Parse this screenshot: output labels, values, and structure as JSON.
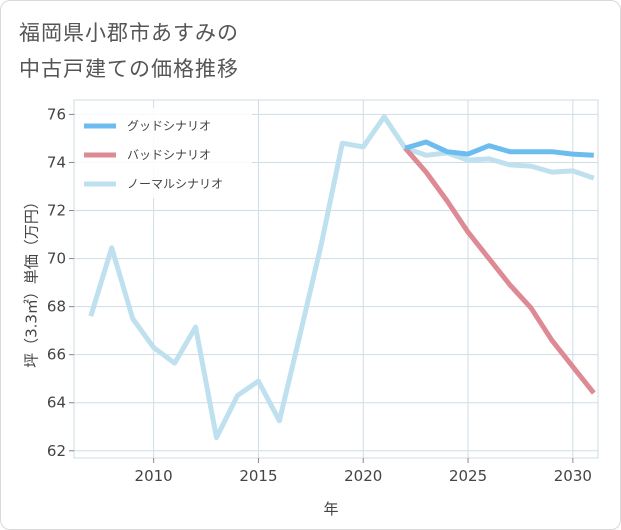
{
  "title": {
    "line1": "福岡県小郡市あすみの",
    "line2": "中古戸建ての価格推移"
  },
  "colors": {
    "good": "#6cbcf0",
    "bad": "#de8a94",
    "normal": "#bfe0ee",
    "grid": "#cfdde6",
    "axis_text": "#444444"
  },
  "chart_data": {
    "type": "line",
    "xlabel": "年",
    "ylabel": "坪（3.3㎡）単価（万円）",
    "xlim": [
      2006.2,
      2031.2
    ],
    "ylim": [
      61.7,
      76.6
    ],
    "xticks": [
      2010,
      2015,
      2020,
      2025,
      2030
    ],
    "yticks": [
      62,
      64,
      66,
      68,
      70,
      72,
      74,
      76
    ],
    "grid": true,
    "legend_position": "top-left",
    "series": [
      {
        "name": "グッドシナリオ",
        "color": "#6cbcf0",
        "x": [
          2022,
          2023,
          2024,
          2025,
          2026,
          2027,
          2028,
          2029,
          2030,
          2031
        ],
        "y": [
          74.6,
          74.85,
          74.45,
          74.35,
          74.7,
          74.45,
          74.45,
          74.45,
          74.35,
          74.3
        ]
      },
      {
        "name": "バッドシナリオ",
        "color": "#de8a94",
        "x": [
          2022,
          2023,
          2024,
          2025,
          2026,
          2027,
          2028,
          2029,
          2030,
          2031
        ],
        "y": [
          74.6,
          73.6,
          72.4,
          71.1,
          70.0,
          68.9,
          67.95,
          66.6,
          65.5,
          64.4
        ]
      },
      {
        "name": "ノーマルシナリオ",
        "color": "#bfe0ee",
        "x": [
          2007,
          2008,
          2009,
          2010,
          2011,
          2012,
          2013,
          2014,
          2015,
          2016,
          2017,
          2018,
          2019,
          2020,
          2021,
          2022,
          2023,
          2024,
          2025,
          2026,
          2027,
          2028,
          2029,
          2030,
          2031
        ],
        "y": [
          67.6,
          70.45,
          67.5,
          66.3,
          65.65,
          67.15,
          62.55,
          64.3,
          64.9,
          63.25,
          66.9,
          70.6,
          74.8,
          74.65,
          75.9,
          74.6,
          74.3,
          74.4,
          74.1,
          74.15,
          73.9,
          73.85,
          73.6,
          73.65,
          73.35
        ]
      }
    ]
  }
}
